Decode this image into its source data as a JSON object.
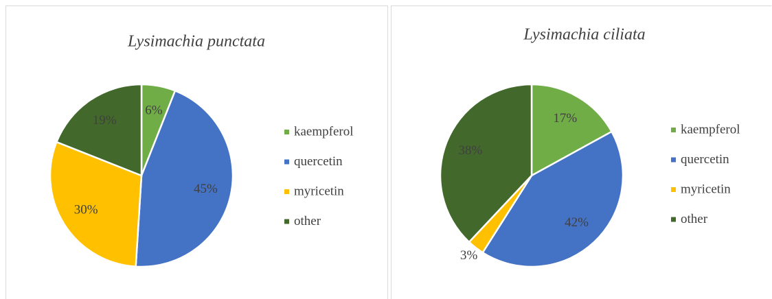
{
  "chart_data": [
    {
      "type": "pie",
      "title": "Lysimachia punctata",
      "categories": [
        "kaempferol",
        "quercetin",
        "myricetin",
        "other"
      ],
      "values": [
        6,
        45,
        30,
        19
      ],
      "value_labels": [
        "6%",
        "45%",
        "30%",
        "19%"
      ],
      "colors": [
        "#70ad47",
        "#4472c4",
        "#ffc000",
        "#43682b"
      ],
      "legend": "right"
    },
    {
      "type": "pie",
      "title": "Lysimachia ciliata",
      "categories": [
        "kaempferol",
        "quercetin",
        "myricetin",
        "other"
      ],
      "values": [
        17,
        42,
        3,
        38
      ],
      "value_labels": [
        "17%",
        "42%",
        "3%",
        "38%"
      ],
      "colors": [
        "#70ad47",
        "#4472c4",
        "#ffc000",
        "#43682b"
      ],
      "legend": "right"
    }
  ]
}
